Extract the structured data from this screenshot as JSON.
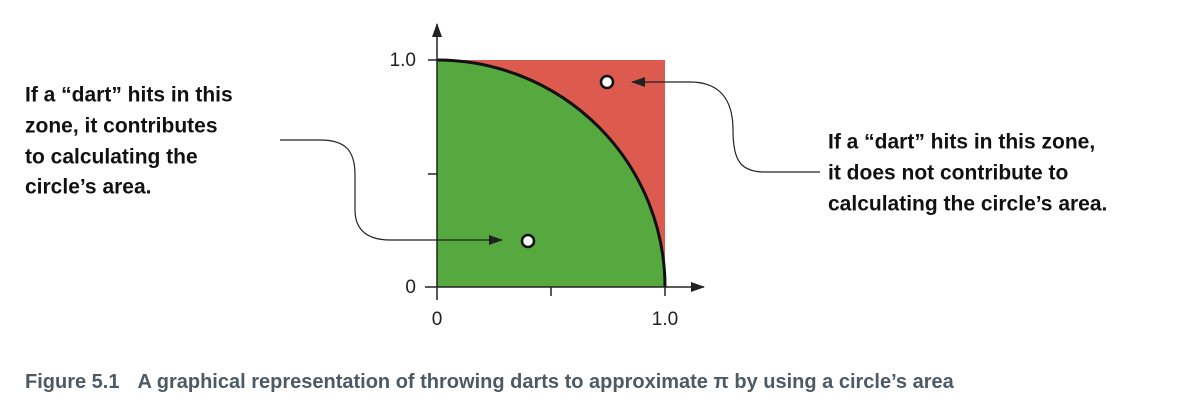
{
  "axes": {
    "y_tick_labels": [
      "1.0",
      "0"
    ],
    "x_tick_labels": [
      "0",
      "1.0"
    ]
  },
  "annotations": [
    {
      "lines": [
        "If a “dart” hits in this",
        "zone, it contributes",
        "to calculating the",
        "circle’s area."
      ]
    },
    {
      "lines": [
        "If a “dart” hits in this zone,",
        "it does not contribute to",
        "calculating the circle’s area."
      ]
    }
  ],
  "caption": {
    "label": "Figure 5.1",
    "text": "A graphical representation of throwing darts to approximate π by using a circle’s area"
  }
}
